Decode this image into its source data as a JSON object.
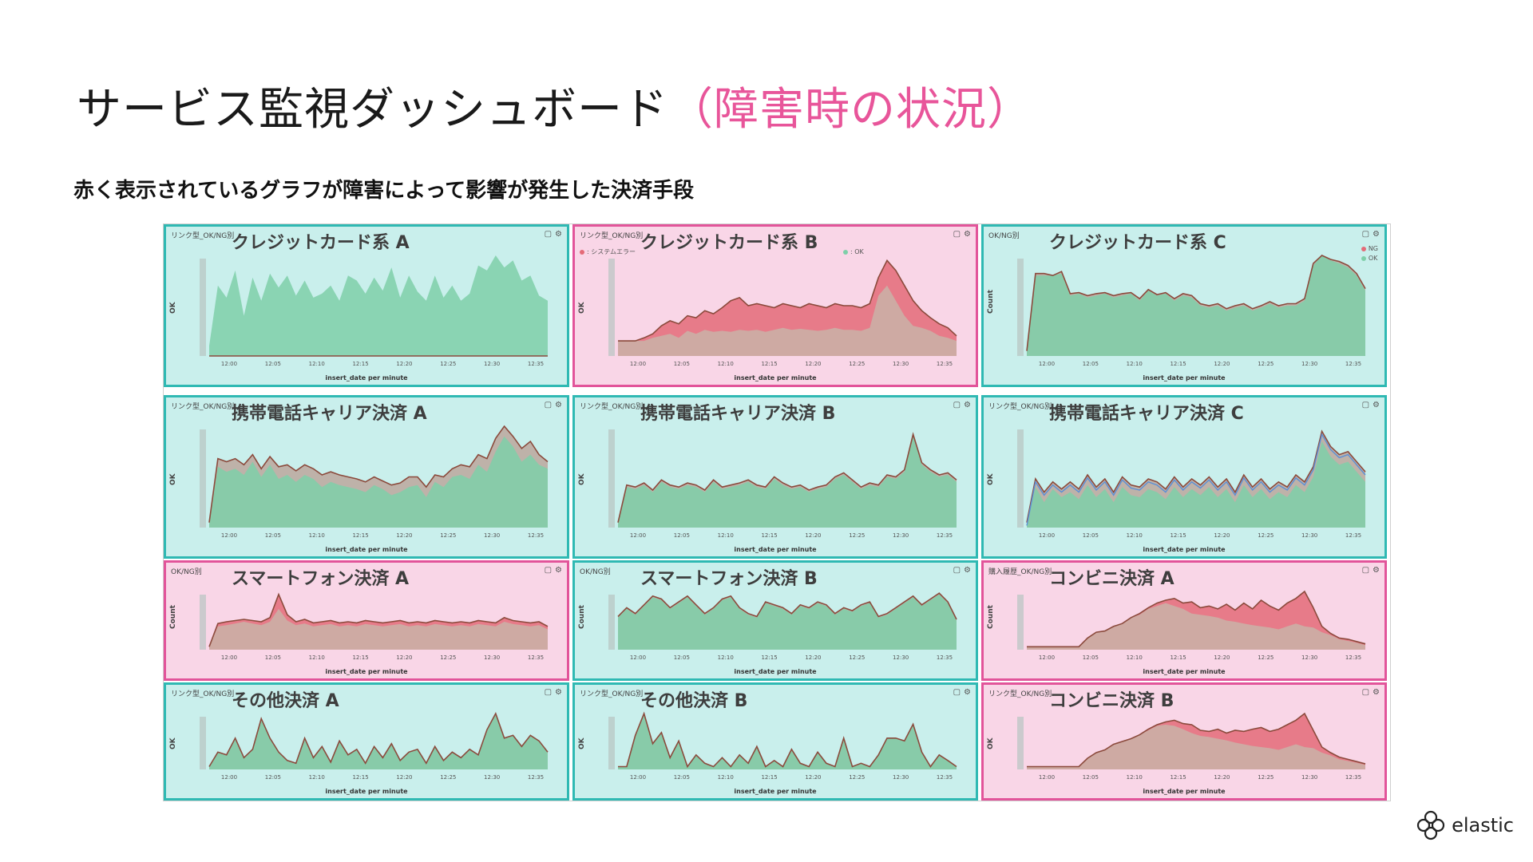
{
  "slide": {
    "title_main": "サービス監視ダッシュボード",
    "title_accent": "（障害時の状況）",
    "subtitle": "赤く表示されているグラフが障害によって影響が発生した決済手段",
    "brand": "elastic"
  },
  "colors": {
    "normal_border": "#2fb9b3",
    "normal_bg": "#c9efec",
    "alert_border": "#e2549a",
    "alert_bg": "#f9d6e7",
    "ok_fill": "#7fcfa9",
    "ng_fill": "#e46b78",
    "line": "#8b4a3c",
    "system_error": "#5b8fd6"
  },
  "time_ticks": [
    "12:00",
    "12:05",
    "12:10",
    "12:15",
    "12:20",
    "12:25",
    "12:30",
    "12:35"
  ],
  "x_axis_label": "insert_date per minute",
  "panels": [
    {
      "id": "cc-a",
      "name": "クレジットカード系 A",
      "tag": "リンク型_OK/NG別",
      "ylabel": "OK",
      "alert": false,
      "ok": [
        10,
        70,
        58,
        85,
        40,
        78,
        55,
        82,
        68,
        80,
        60,
        75,
        58,
        62,
        70,
        55,
        80,
        75,
        62,
        78,
        65,
        88,
        58,
        80,
        64,
        55,
        80,
        58,
        70,
        55,
        62,
        90,
        85,
        100,
        88,
        95,
        75,
        80,
        60,
        55
      ],
      "ng": [
        0,
        0,
        0,
        0,
        0,
        0,
        0,
        0,
        0,
        0,
        0,
        0,
        0,
        0,
        0,
        0,
        0,
        0,
        0,
        0,
        0,
        0,
        0,
        0,
        0,
        0,
        0,
        0,
        0,
        0,
        0,
        0,
        0,
        0,
        0,
        0,
        0,
        0,
        0,
        0
      ]
    },
    {
      "id": "cc-b",
      "name": "クレジットカード系 B",
      "tag": "リンク型_OK/NG別",
      "ylabel": "OK",
      "alert": true,
      "legend": [
        ": システムエラー",
        ": OK"
      ],
      "ok": [
        15,
        15,
        15,
        15,
        18,
        20,
        22,
        18,
        25,
        22,
        26,
        24,
        25,
        24,
        26,
        25,
        26,
        24,
        26,
        28,
        26,
        27,
        26,
        25,
        26,
        28,
        26,
        26,
        25,
        28,
        60,
        70,
        55,
        40,
        30,
        28,
        25,
        20,
        18,
        15
      ],
      "ng": [
        15,
        15,
        15,
        18,
        22,
        30,
        35,
        32,
        40,
        38,
        45,
        42,
        48,
        55,
        58,
        50,
        52,
        50,
        48,
        52,
        50,
        48,
        52,
        50,
        48,
        52,
        50,
        50,
        48,
        52,
        78,
        95,
        85,
        70,
        55,
        45,
        38,
        32,
        28,
        20
      ]
    },
    {
      "id": "cc-c",
      "name": "クレジットカード系 C",
      "tag": "OK/NG別",
      "ylabel": "Count",
      "alert": false,
      "legend": [
        "NG",
        "OK"
      ],
      "ok": [
        5,
        80,
        80,
        80,
        82,
        60,
        62,
        58,
        60,
        62,
        58,
        60,
        62,
        55,
        65,
        60,
        62,
        55,
        60,
        58,
        50,
        48,
        50,
        45,
        48,
        50,
        45,
        48,
        52,
        48,
        50,
        50,
        55,
        90,
        100,
        95,
        92,
        88,
        80,
        65
      ],
      "ng": [
        5,
        82,
        82,
        80,
        84,
        62,
        63,
        60,
        62,
        63,
        60,
        62,
        63,
        57,
        66,
        61,
        63,
        57,
        62,
        60,
        52,
        50,
        52,
        47,
        50,
        52,
        47,
        50,
        54,
        50,
        52,
        52,
        57,
        92,
        100,
        96,
        94,
        90,
        82,
        67
      ]
    },
    {
      "id": "mc-a",
      "name": "携帯電話キャリア決済 A",
      "tag": "リンク型_OK/NG別",
      "ylabel": "OK",
      "alert": false,
      "ok": [
        5,
        60,
        55,
        58,
        52,
        65,
        50,
        62,
        48,
        52,
        45,
        52,
        48,
        40,
        45,
        42,
        40,
        38,
        35,
        42,
        38,
        32,
        35,
        40,
        42,
        30,
        45,
        40,
        50,
        52,
        48,
        62,
        55,
        75,
        90,
        80,
        65,
        72,
        62,
        58
      ],
      "ng": [
        5,
        68,
        65,
        68,
        62,
        72,
        58,
        70,
        60,
        62,
        56,
        62,
        58,
        52,
        55,
        52,
        50,
        48,
        45,
        50,
        46,
        42,
        44,
        50,
        50,
        40,
        52,
        50,
        58,
        62,
        60,
        72,
        68,
        88,
        100,
        90,
        78,
        85,
        72,
        65
      ]
    },
    {
      "id": "mc-b",
      "name": "携帯電話キャリア決済 B",
      "tag": "リンク型_OK/NG別",
      "ylabel": "OK",
      "alert": false,
      "ok": [
        5,
        40,
        38,
        42,
        35,
        45,
        40,
        38,
        42,
        40,
        35,
        45,
        38,
        40,
        42,
        45,
        40,
        38,
        48,
        42,
        38,
        40,
        35,
        38,
        40,
        48,
        52,
        45,
        38,
        42,
        40,
        50,
        48,
        55,
        90,
        62,
        55,
        50,
        52,
        45
      ],
      "ng": [
        5,
        42,
        40,
        44,
        37,
        47,
        42,
        40,
        44,
        42,
        37,
        47,
        40,
        42,
        44,
        47,
        42,
        40,
        50,
        44,
        40,
        42,
        37,
        40,
        42,
        50,
        54,
        47,
        40,
        44,
        42,
        52,
        50,
        57,
        92,
        64,
        57,
        52,
        54,
        47
      ]
    },
    {
      "id": "mc-c",
      "name": "携帯電話キャリア決済 C",
      "tag": "リンク型_OK/NG別",
      "ylabel": "OK",
      "alert": false,
      "ok": [
        5,
        40,
        25,
        38,
        30,
        35,
        28,
        42,
        30,
        38,
        25,
        40,
        32,
        30,
        38,
        35,
        28,
        40,
        30,
        38,
        32,
        40,
        30,
        38,
        25,
        42,
        30,
        38,
        28,
        35,
        30,
        42,
        35,
        50,
        85,
        70,
        62,
        65,
        55,
        45
      ],
      "ng": [
        5,
        48,
        35,
        45,
        38,
        45,
        38,
        52,
        40,
        48,
        35,
        50,
        42,
        40,
        48,
        45,
        38,
        50,
        40,
        48,
        42,
        50,
        40,
        48,
        35,
        52,
        40,
        48,
        38,
        45,
        40,
        52,
        45,
        60,
        95,
        80,
        72,
        75,
        65,
        55
      ]
    },
    {
      "id": "sp-a",
      "name": "スマートフォン決済 A",
      "tag": "OK/NG別",
      "ylabel": "Count",
      "alert": true,
      "ok": [
        5,
        40,
        42,
        45,
        48,
        45,
        42,
        48,
        70,
        50,
        42,
        45,
        40,
        42,
        44,
        40,
        42,
        40,
        44,
        42,
        40,
        42,
        44,
        40,
        42,
        40,
        44,
        42,
        40,
        42,
        40,
        44,
        42,
        40,
        48,
        44,
        42,
        40,
        42,
        35
      ],
      "ng": [
        5,
        45,
        48,
        50,
        52,
        50,
        48,
        55,
        95,
        60,
        48,
        52,
        46,
        48,
        50,
        46,
        48,
        46,
        50,
        48,
        46,
        48,
        50,
        46,
        48,
        46,
        50,
        48,
        46,
        48,
        46,
        50,
        48,
        46,
        55,
        50,
        48,
        46,
        48,
        40
      ]
    },
    {
      "id": "sp-b",
      "name": "スマートフォン決済 B",
      "tag": "OK/NG別",
      "ylabel": "Count",
      "alert": false,
      "ok": [
        55,
        70,
        60,
        75,
        90,
        85,
        70,
        80,
        90,
        75,
        60,
        70,
        85,
        90,
        70,
        60,
        55,
        80,
        75,
        70,
        60,
        75,
        70,
        80,
        75,
        60,
        70,
        65,
        75,
        80,
        55,
        60,
        70,
        80,
        90,
        75,
        85,
        95,
        80,
        50
      ],
      "ng": [
        57,
        72,
        62,
        77,
        92,
        87,
        72,
        82,
        92,
        77,
        62,
        72,
        87,
        92,
        72,
        62,
        57,
        82,
        77,
        72,
        62,
        77,
        72,
        82,
        77,
        62,
        72,
        67,
        77,
        82,
        57,
        62,
        72,
        82,
        92,
        77,
        87,
        97,
        82,
        52
      ]
    },
    {
      "id": "cv-a",
      "name": "コンビニ決済 A",
      "tag": "購入履歴_OK/NG別",
      "ylabel": "Count",
      "alert": true,
      "ok": [
        5,
        5,
        5,
        5,
        5,
        5,
        5,
        20,
        30,
        32,
        40,
        45,
        55,
        60,
        70,
        75,
        80,
        75,
        70,
        62,
        60,
        58,
        55,
        50,
        48,
        45,
        42,
        40,
        38,
        35,
        40,
        45,
        40,
        38,
        30,
        25,
        18,
        15,
        12,
        8
      ],
      "ng": [
        5,
        5,
        5,
        5,
        5,
        5,
        5,
        20,
        30,
        32,
        40,
        45,
        55,
        62,
        72,
        80,
        85,
        88,
        80,
        82,
        72,
        75,
        70,
        78,
        68,
        80,
        70,
        85,
        75,
        68,
        80,
        88,
        100,
        72,
        40,
        28,
        20,
        18,
        14,
        10
      ]
    },
    {
      "id": "ot-a",
      "name": "その他決済 A",
      "tag": "リンク型_OK/NG別",
      "ylabel": "OK",
      "alert": false,
      "ok": [
        5,
        30,
        25,
        55,
        20,
        35,
        90,
        55,
        30,
        15,
        10,
        55,
        20,
        40,
        12,
        50,
        25,
        35,
        10,
        40,
        20,
        45,
        15,
        30,
        35,
        10,
        40,
        15,
        30,
        20,
        35,
        25,
        70,
        100,
        55,
        60,
        40,
        60,
        50,
        30
      ],
      "ng": [
        5,
        31,
        26,
        56,
        21,
        36,
        91,
        56,
        31,
        16,
        11,
        56,
        21,
        41,
        13,
        51,
        26,
        36,
        11,
        41,
        21,
        46,
        16,
        31,
        36,
        11,
        41,
        16,
        31,
        21,
        36,
        26,
        71,
        100,
        56,
        61,
        41,
        61,
        51,
        31
      ]
    },
    {
      "id": "ot-b",
      "name": "その他決済 B",
      "tag": "リンク型_OK/NG別",
      "ylabel": "OK",
      "alert": false,
      "ok": [
        5,
        5,
        60,
        100,
        45,
        65,
        20,
        50,
        5,
        25,
        10,
        5,
        20,
        5,
        25,
        10,
        40,
        5,
        15,
        5,
        35,
        10,
        5,
        30,
        10,
        5,
        55,
        5,
        10,
        5,
        25,
        55,
        55,
        50,
        80,
        30,
        5,
        25,
        15,
        5
      ],
      "ng": [
        5,
        5,
        61,
        100,
        46,
        66,
        21,
        51,
        5,
        26,
        11,
        5,
        21,
        5,
        26,
        11,
        41,
        5,
        16,
        5,
        36,
        11,
        5,
        31,
        11,
        5,
        56,
        5,
        11,
        5,
        26,
        56,
        56,
        51,
        81,
        31,
        5,
        26,
        16,
        5
      ]
    },
    {
      "id": "cv-b",
      "name": "コンビニ決済 B",
      "tag": "リンク型_OK/NG別",
      "ylabel": "OK",
      "alert": true,
      "ok": [
        5,
        5,
        5,
        5,
        5,
        5,
        5,
        20,
        30,
        35,
        45,
        50,
        55,
        62,
        70,
        78,
        80,
        78,
        72,
        65,
        60,
        58,
        55,
        52,
        48,
        45,
        42,
        40,
        38,
        35,
        40,
        45,
        40,
        38,
        30,
        25,
        18,
        15,
        12,
        8
      ],
      "ng": [
        5,
        5,
        5,
        5,
        5,
        5,
        5,
        20,
        30,
        35,
        45,
        50,
        55,
        62,
        72,
        80,
        85,
        88,
        82,
        80,
        70,
        68,
        72,
        65,
        70,
        68,
        72,
        75,
        68,
        72,
        80,
        88,
        100,
        70,
        40,
        30,
        22,
        18,
        14,
        10
      ]
    }
  ]
}
